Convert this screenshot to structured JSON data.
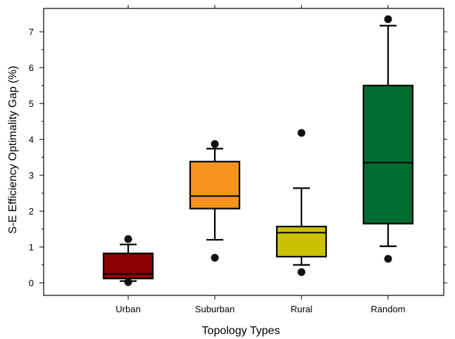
{
  "chart_data": {
    "type": "box",
    "xlabel": "Topology Types",
    "ylabel": "S-E Efficiency Optimality Gap (%)",
    "ylim": [
      -0.35,
      7.65
    ],
    "yticks": [
      0,
      1,
      2,
      3,
      4,
      5,
      6,
      7
    ],
    "categories": [
      "Urban",
      "Suburban",
      "Rural",
      "Random"
    ],
    "boxes": [
      {
        "name": "Urban",
        "color": "#8b0000",
        "whisker_low": 0.05,
        "q1": 0.12,
        "median": 0.25,
        "q3": 0.82,
        "whisker_high": 1.07,
        "outliers": [
          1.22,
          0.02
        ]
      },
      {
        "name": "Suburban",
        "color": "#f7941d",
        "whisker_low": 1.2,
        "q1": 2.07,
        "median": 2.42,
        "q3": 3.38,
        "whisker_high": 3.74,
        "outliers": [
          3.87,
          0.7
        ]
      },
      {
        "name": "Rural",
        "color": "#cbc102",
        "whisker_low": 0.5,
        "q1": 0.73,
        "median": 1.4,
        "q3": 1.57,
        "whisker_high": 2.64,
        "outliers": [
          4.18,
          0.3
        ]
      },
      {
        "name": "Random",
        "color": "#006b2e",
        "whisker_low": 1.02,
        "q1": 1.65,
        "median": 3.35,
        "q3": 5.5,
        "whisker_high": 7.17,
        "outliers": [
          7.35,
          0.67
        ]
      }
    ]
  }
}
